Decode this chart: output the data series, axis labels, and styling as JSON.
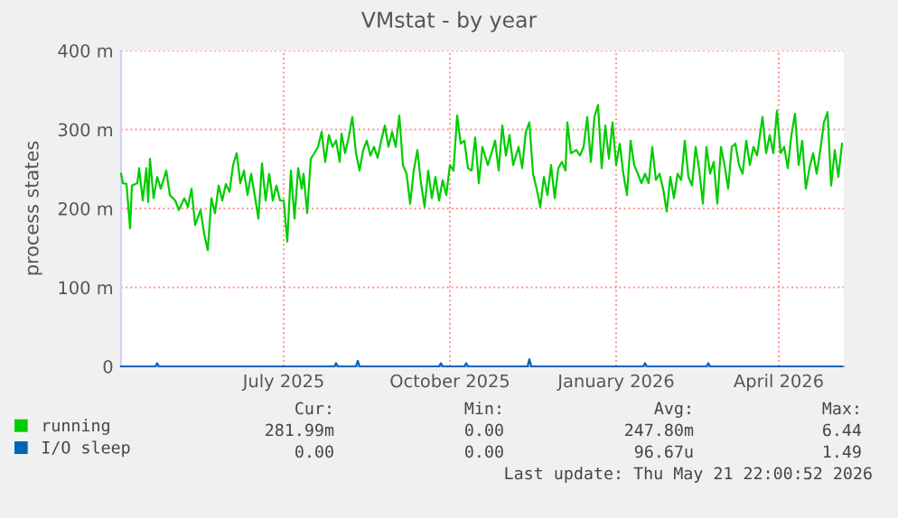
{
  "chart_data": {
    "type": "line",
    "title": "VMstat - by year",
    "ylabel": "process states",
    "xlim": [
      "2025-04-02",
      "2026-05-07"
    ],
    "xticks": [
      {
        "value": "2025-07-01",
        "label": "July 2025"
      },
      {
        "value": "2025-10-01",
        "label": "October 2025"
      },
      {
        "value": "2026-01-01",
        "label": "January 2026"
      },
      {
        "value": "2026-04-01",
        "label": "April 2026"
      }
    ],
    "ylim": [
      0,
      400
    ],
    "yticks": [
      0,
      {
        "value": 100,
        "label": "100 m"
      },
      {
        "value": 200,
        "label": "200 m"
      },
      {
        "value": 300,
        "label": "300 m"
      },
      {
        "value": 400,
        "label": "400 m"
      }
    ],
    "grid": true,
    "legend": "bottom left",
    "series": [
      {
        "name": "running",
        "color": "#00cc00",
        "x": [
          "2025-04-02",
          "2025-04-03",
          "2025-04-05",
          "2025-04-07",
          "2025-04-08",
          "2025-04-11",
          "2025-04-12",
          "2025-04-14",
          "2025-04-16",
          "2025-04-17",
          "2025-04-18",
          "2025-04-20",
          "2025-04-22",
          "2025-04-24",
          "2025-04-27",
          "2025-04-29",
          "2025-05-02",
          "2025-05-04",
          "2025-05-07",
          "2025-05-09",
          "2025-05-11",
          "2025-05-13",
          "2025-05-16",
          "2025-05-18",
          "2025-05-20",
          "2025-05-22",
          "2025-05-24",
          "2025-05-26",
          "2025-05-28",
          "2025-05-30",
          "2025-06-01",
          "2025-06-03",
          "2025-06-05",
          "2025-06-07",
          "2025-06-09",
          "2025-06-11",
          "2025-06-13",
          "2025-06-16",
          "2025-06-17",
          "2025-06-19",
          "2025-06-21",
          "2025-06-23",
          "2025-06-25",
          "2025-06-27",
          "2025-06-29",
          "2025-07-01",
          "2025-07-03",
          "2025-07-05",
          "2025-07-07",
          "2025-07-09",
          "2025-07-11",
          "2025-07-12",
          "2025-07-14",
          "2025-07-16",
          "2025-07-18",
          "2025-07-20",
          "2025-07-22",
          "2025-07-24",
          "2025-07-26",
          "2025-07-28",
          "2025-07-30",
          "2025-08-01",
          "2025-08-02",
          "2025-08-04",
          "2025-08-06",
          "2025-08-08",
          "2025-08-10",
          "2025-08-12",
          "2025-08-14",
          "2025-08-16",
          "2025-08-18",
          "2025-08-20",
          "2025-08-22",
          "2025-08-24",
          "2025-08-26",
          "2025-08-28",
          "2025-08-30",
          "2025-09-01",
          "2025-09-03",
          "2025-09-05",
          "2025-09-07",
          "2025-09-09",
          "2025-09-11",
          "2025-09-13",
          "2025-09-15",
          "2025-09-17",
          "2025-09-19",
          "2025-09-21",
          "2025-09-23",
          "2025-09-25",
          "2025-09-27",
          "2025-09-29",
          "2025-10-01",
          "2025-10-03",
          "2025-10-05",
          "2025-10-07",
          "2025-10-09",
          "2025-10-11",
          "2025-10-13",
          "2025-10-15",
          "2025-10-17",
          "2025-10-19",
          "2025-10-22",
          "2025-10-24",
          "2025-10-26",
          "2025-10-28",
          "2025-10-30",
          "2025-11-01",
          "2025-11-03",
          "2025-11-05",
          "2025-11-08",
          "2025-11-10",
          "2025-11-12",
          "2025-11-14",
          "2025-11-16",
          "2025-11-18",
          "2025-11-20",
          "2025-11-22",
          "2025-11-24",
          "2025-11-26",
          "2025-11-28",
          "2025-11-30",
          "2025-12-02",
          "2025-12-04",
          "2025-12-05",
          "2025-12-07",
          "2025-12-10",
          "2025-12-12",
          "2025-12-14",
          "2025-12-16",
          "2025-12-18",
          "2025-12-20",
          "2025-12-22",
          "2025-12-24",
          "2025-12-26",
          "2025-12-28",
          "2025-12-30",
          "2026-01-01",
          "2026-01-03",
          "2026-01-05",
          "2026-01-07",
          "2026-01-09",
          "2026-01-11",
          "2026-01-13",
          "2026-01-15",
          "2026-01-17",
          "2026-01-19",
          "2026-01-21",
          "2026-01-23",
          "2026-01-25",
          "2026-01-27",
          "2026-01-29",
          "2026-01-31",
          "2026-02-02",
          "2026-02-04",
          "2026-02-06",
          "2026-02-08",
          "2026-02-10",
          "2026-02-12",
          "2026-02-14",
          "2026-02-16",
          "2026-02-18",
          "2026-02-20",
          "2026-02-22",
          "2026-02-24",
          "2026-02-26",
          "2026-02-28",
          "2026-03-02",
          "2026-03-04",
          "2026-03-06",
          "2026-03-08",
          "2026-03-10",
          "2026-03-12",
          "2026-03-14",
          "2026-03-16",
          "2026-03-18",
          "2026-03-20",
          "2026-03-23",
          "2026-03-25",
          "2026-03-27",
          "2026-03-29",
          "2026-03-31",
          "2026-04-02",
          "2026-04-04",
          "2026-04-06",
          "2026-04-08",
          "2026-04-10",
          "2026-04-12",
          "2026-04-14",
          "2026-04-16",
          "2026-04-18",
          "2026-04-20",
          "2026-04-22",
          "2026-04-24",
          "2026-04-26",
          "2026-04-28",
          "2026-04-30",
          "2026-05-02",
          "2026-05-04",
          "2026-05-06"
        ],
        "values": [
          244,
          232,
          231,
          175,
          229,
          232,
          251,
          210,
          251,
          208,
          263,
          213,
          240,
          225,
          248,
          217,
          210,
          198,
          213,
          202,
          225,
          179,
          198,
          168,
          147,
          213,
          194,
          229,
          210,
          231,
          221,
          255,
          270,
          232,
          248,
          217,
          244,
          202,
          187,
          257,
          210,
          244,
          210,
          229,
          210,
          210,
          158,
          248,
          187,
          251,
          225,
          244,
          194,
          263,
          270,
          278,
          297,
          259,
          293,
          278,
          286,
          259,
          295,
          270,
          290,
          316,
          270,
          248,
          274,
          286,
          267,
          278,
          264,
          286,
          305,
          278,
          297,
          278,
          318,
          255,
          244,
          206,
          248,
          274,
          232,
          202,
          248,
          213,
          240,
          210,
          236,
          217,
          255,
          248,
          318,
          282,
          286,
          251,
          248,
          290,
          232,
          278,
          255,
          270,
          286,
          248,
          305,
          267,
          293,
          255,
          278,
          251,
          297,
          309,
          244,
          225,
          202,
          240,
          217,
          255,
          213,
          251,
          259,
          248,
          309,
          270,
          274,
          267,
          278,
          316,
          259,
          316,
          331,
          251,
          305,
          263,
          309,
          255,
          282,
          244,
          217,
          286,
          255,
          244,
          232,
          244,
          232,
          278,
          236,
          244,
          225,
          196,
          240,
          213,
          244,
          236,
          286,
          240,
          229,
          278,
          248,
          206,
          278,
          244,
          259,
          206,
          278,
          255,
          225,
          278,
          282,
          255,
          244,
          286,
          255,
          278,
          267,
          316,
          270,
          293,
          270,
          324,
          270,
          278,
          251,
          293,
          320,
          255,
          286,
          225,
          251,
          270,
          244,
          274,
          309,
          322,
          229,
          274,
          240,
          282
        ]
      },
      {
        "name": "I/O sleep",
        "color": "#0066b3",
        "x": [
          "2025-04-02",
          "2025-04-21",
          "2025-04-22",
          "2025-04-23",
          "2025-07-29",
          "2025-07-30",
          "2025-07-31",
          "2025-08-10",
          "2025-08-11",
          "2025-08-12",
          "2025-09-25",
          "2025-09-26",
          "2025-09-27",
          "2025-10-09",
          "2025-10-10",
          "2025-10-11",
          "2025-11-13",
          "2025-11-14",
          "2025-11-15",
          "2026-01-16",
          "2026-01-17",
          "2026-01-18",
          "2026-02-20",
          "2026-02-21",
          "2026-02-22",
          "2026-05-06"
        ],
        "values": [
          0,
          0,
          4,
          0,
          0,
          4,
          0,
          0,
          7,
          0,
          0,
          4,
          0,
          0,
          4,
          0,
          0,
          9,
          0,
          0,
          4,
          0,
          0,
          4,
          0,
          0
        ]
      }
    ],
    "annotations": [
      "Cur:",
      "Min:",
      "Avg:",
      "Max:",
      "281.99m",
      "0.00",
      "247.80m",
      "6.44",
      "0.00",
      "0.00",
      "96.67u",
      "1.49",
      "Last update: Thu May 21 22:00:52 2026"
    ]
  }
}
